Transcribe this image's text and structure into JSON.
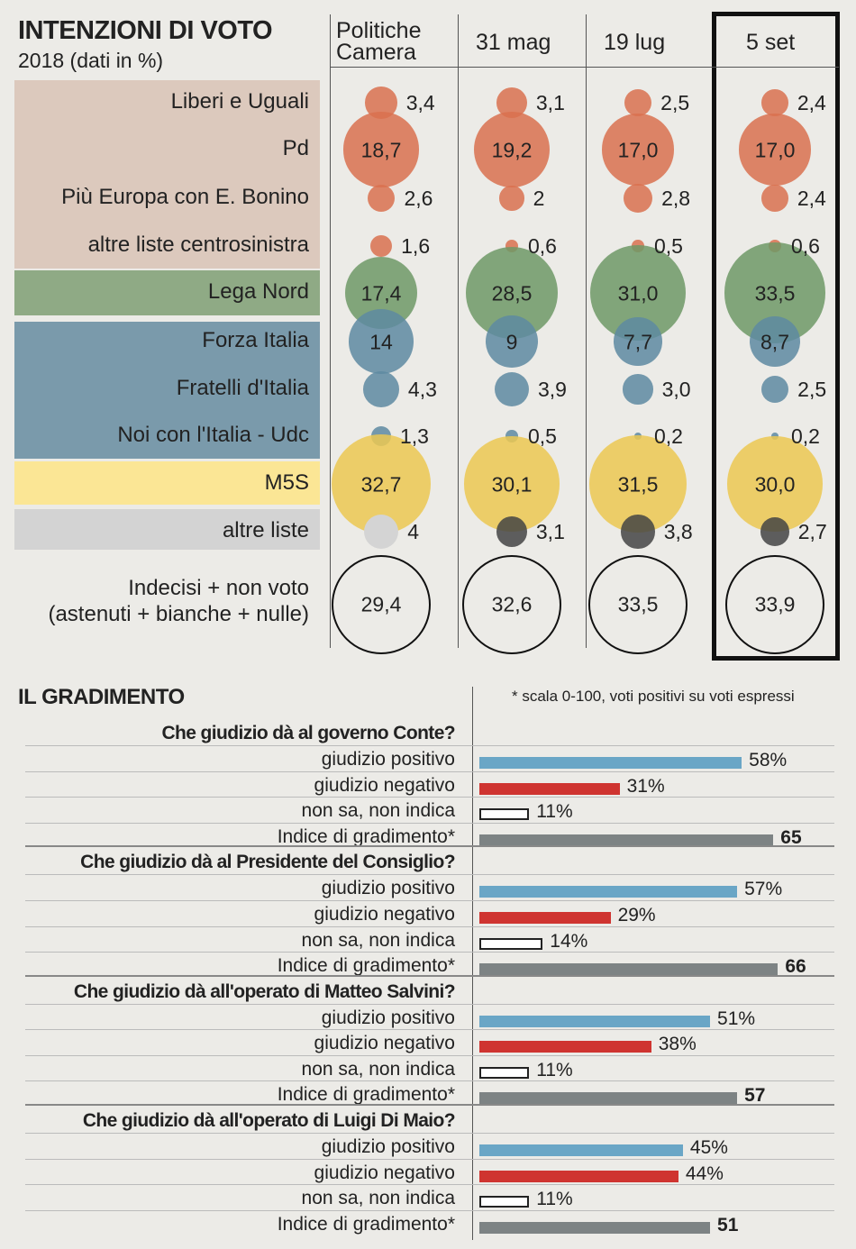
{
  "header": {
    "title": "INTENZIONI DI VOTO",
    "subtitle": "2018 (dati in %)"
  },
  "columns": [
    "Politiche\nCamera",
    "31 mag",
    "19 lug",
    "5 set"
  ],
  "colors": {
    "centrosinistra_bg": "#dcc9bd",
    "lega_bg": "#8faa85",
    "centrodestra_bg": "#7a9aab",
    "m5s_bg": "#fbe695",
    "altre_bg": "#d3d3d3",
    "pd_bubble": "#d9714f",
    "lega_bubble": "#6f9966",
    "cdx_bubble": "#5e8aa1",
    "m5s_bubble": "#ecc851",
    "altre_bubble": "#444444",
    "bar_pos": "#6aa6c6",
    "bar_neg": "#cf3430",
    "bar_idx": "#7d8384"
  },
  "chart_data": [
    {
      "type": "bubble",
      "title": "INTENZIONI DI VOTO",
      "subtitle": "2018 (dati in %)",
      "categories": [
        "Politiche Camera",
        "31 mag",
        "19 lug",
        "5 set"
      ],
      "series": [
        {
          "name": "Liberi e Uguali",
          "group": "centrosinistra",
          "values": [
            "3,4",
            "3,1",
            "2,5",
            "2,4"
          ]
        },
        {
          "name": "Pd",
          "group": "centrosinistra",
          "values": [
            "18,7",
            "19,2",
            "17,0",
            "17,0"
          ]
        },
        {
          "name": "Più Europa con E. Bonino",
          "group": "centrosinistra",
          "values": [
            "2,6",
            "2",
            "2,8",
            "2,4"
          ]
        },
        {
          "name": "altre liste centrosinistra",
          "group": "centrosinistra",
          "values": [
            "1,6",
            "0,6",
            "0,5",
            "0,6"
          ]
        },
        {
          "name": "Lega Nord",
          "group": "lega",
          "values": [
            "17,4",
            "28,5",
            "31,0",
            "33,5"
          ]
        },
        {
          "name": "Forza Italia",
          "group": "centrodestra",
          "values": [
            "14",
            "9",
            "7,7",
            "8,7"
          ]
        },
        {
          "name": "Fratelli d'Italia",
          "group": "centrodestra",
          "values": [
            "4,3",
            "3,9",
            "3,0",
            "2,5"
          ]
        },
        {
          "name": "Noi con l'Italia - Udc",
          "group": "centrodestra",
          "values": [
            "1,3",
            "0,5",
            "0,2",
            "0,2"
          ]
        },
        {
          "name": "M5S",
          "group": "m5s",
          "values": [
            "32,7",
            "30,1",
            "31,5",
            "30,0"
          ]
        },
        {
          "name": "altre liste",
          "group": "altre",
          "values": [
            "4",
            "3,1",
            "3,8",
            "2,7"
          ]
        }
      ],
      "undecided": {
        "label": [
          "Indecisi + non voto",
          "(astenuti + bianche + nulle)"
        ],
        "values": [
          "29,4",
          "32,6",
          "33,5",
          "33,9"
        ]
      }
    },
    {
      "type": "bar",
      "title": "IL GRADIMENTO",
      "note": "* scala 0-100, voti positivi su voti espressi",
      "xlim": [
        0,
        100
      ],
      "questions": [
        {
          "question": "Che giudizio dà al governo Conte?",
          "rows": [
            {
              "label": "giudizio positivo",
              "value": 58,
              "text": "58%",
              "kind": "pos"
            },
            {
              "label": "giudizio negativo",
              "value": 31,
              "text": "31%",
              "kind": "neg"
            },
            {
              "label": "non sa, non indica",
              "value": 11,
              "text": "11%",
              "kind": "ns"
            },
            {
              "label": "Indice di gradimento*",
              "value": 65,
              "text": "65",
              "kind": "idx"
            }
          ]
        },
        {
          "question": "Che giudizio dà al Presidente del Consiglio?",
          "rows": [
            {
              "label": "giudizio positivo",
              "value": 57,
              "text": "57%",
              "kind": "pos"
            },
            {
              "label": "giudizio negativo",
              "value": 29,
              "text": "29%",
              "kind": "neg"
            },
            {
              "label": "non sa, non indica",
              "value": 14,
              "text": "14%",
              "kind": "ns"
            },
            {
              "label": "Indice di gradimento*",
              "value": 66,
              "text": "66",
              "kind": "idx"
            }
          ]
        },
        {
          "question": "Che giudizio dà all'operato di Matteo Salvini?",
          "rows": [
            {
              "label": "giudizio positivo",
              "value": 51,
              "text": "51%",
              "kind": "pos"
            },
            {
              "label": "giudizio negativo",
              "value": 38,
              "text": "38%",
              "kind": "neg"
            },
            {
              "label": "non sa, non indica",
              "value": 11,
              "text": "11%",
              "kind": "ns"
            },
            {
              "label": "Indice di gradimento*",
              "value": 57,
              "text": "57",
              "kind": "idx"
            }
          ]
        },
        {
          "question": "Che giudizio dà all'operato di Luigi Di Maio?",
          "rows": [
            {
              "label": "giudizio positivo",
              "value": 45,
              "text": "45%",
              "kind": "pos"
            },
            {
              "label": "giudizio negativo",
              "value": 44,
              "text": "44%",
              "kind": "neg"
            },
            {
              "label": "non sa, non indica",
              "value": 11,
              "text": "11%",
              "kind": "ns"
            },
            {
              "label": "Indice di gradimento*",
              "value": 51,
              "text": "51",
              "kind": "idx"
            }
          ]
        }
      ]
    }
  ]
}
